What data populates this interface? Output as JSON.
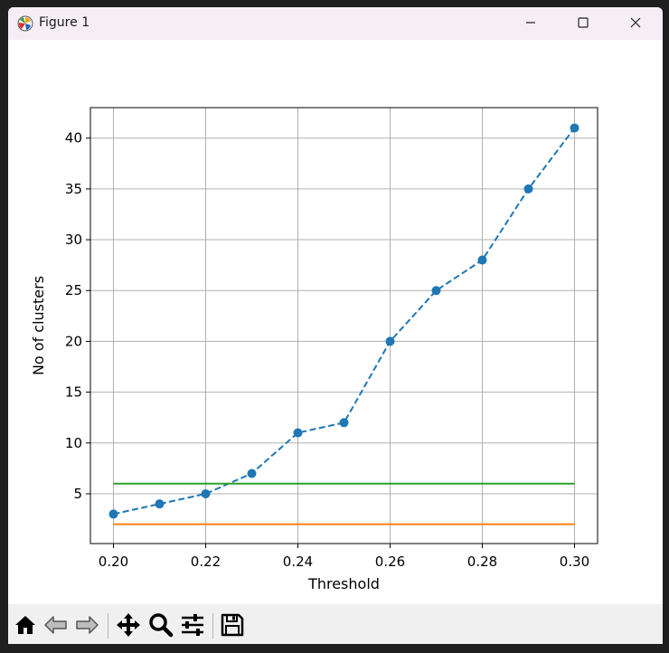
{
  "window": {
    "title": "Figure 1"
  },
  "toolbar": {
    "buttons": [
      "home-icon",
      "back-arrow-icon",
      "forward-arrow-icon",
      "pan-icon",
      "zoom-icon",
      "configure-subplots-icon",
      "save-icon"
    ]
  },
  "chart_data": {
    "type": "line",
    "title": "",
    "xlabel": "Threshold",
    "ylabel": "No of clusters",
    "xlim": [
      0.195,
      0.305
    ],
    "ylim": [
      0.1,
      43
    ],
    "xticks": [
      0.2,
      0.22,
      0.24,
      0.26,
      0.28,
      0.3
    ],
    "xtick_labels": [
      "0.20",
      "0.22",
      "0.24",
      "0.26",
      "0.28",
      "0.30"
    ],
    "yticks": [
      5,
      10,
      15,
      20,
      25,
      30,
      35,
      40
    ],
    "ytick_labels": [
      "5",
      "10",
      "15",
      "20",
      "25",
      "30",
      "35",
      "40"
    ],
    "grid": true,
    "series": [
      {
        "x": [
          0.2,
          0.21,
          0.22,
          0.23,
          0.24,
          0.25,
          0.26,
          0.27,
          0.28,
          0.29,
          0.3
        ],
        "values": [
          3,
          4,
          5,
          7,
          11,
          12,
          20,
          25,
          28,
          35,
          41
        ],
        "color": "#1f77b4",
        "style": "dashed",
        "marker": "circle"
      },
      {
        "x": [
          0.2,
          0.3
        ],
        "values": [
          2,
          2
        ],
        "color": "#ff7f0e",
        "style": "solid"
      },
      {
        "x": [
          0.2,
          0.3
        ],
        "values": [
          6,
          6
        ],
        "color": "#2ca02c",
        "style": "solid"
      }
    ]
  }
}
